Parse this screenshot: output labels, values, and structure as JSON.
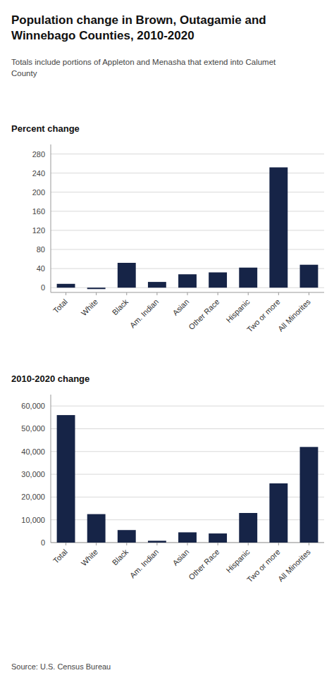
{
  "title": "Population change in Brown, Outagamie and\nWinnebago Counties, 2010-2020",
  "subtitle": "Totals include portions of Appleton and Menasha that extend into Calumet\nCounty",
  "source": "Source: U.S. Census Bureau",
  "chart_data": [
    {
      "type": "bar",
      "title": "Percent change",
      "categories": [
        "Total",
        "White",
        "Black",
        "Am. Indian",
        "Asian",
        "Other Race",
        "Hispanic",
        "Two or more",
        "All Minorites"
      ],
      "values": [
        8,
        -3,
        52,
        12,
        28,
        32,
        42,
        252,
        48
      ],
      "color": "#162447",
      "ylim": [
        -10,
        300
      ],
      "yticks": [
        0,
        40,
        80,
        120,
        160,
        200,
        240,
        280
      ],
      "grid": true
    },
    {
      "type": "bar",
      "title": "2010-2020 change",
      "categories": [
        "Total",
        "White",
        "Black",
        "Am. Indian",
        "Asian",
        "Other Race",
        "Hispanic",
        "Two or more",
        "All Minorites"
      ],
      "values": [
        56000,
        12500,
        5500,
        800,
        4500,
        4000,
        13000,
        26000,
        42000
      ],
      "color": "#162447",
      "ylim": [
        0,
        65000
      ],
      "yticks": [
        0,
        {
          "value": 10000,
          "label": "10,000"
        },
        {
          "value": 20000,
          "label": "20,000"
        },
        {
          "value": 30000,
          "label": "30,000"
        },
        {
          "value": 40000,
          "label": "40,000"
        },
        {
          "value": 50000,
          "label": "50,000"
        },
        {
          "value": 60000,
          "label": "60,000"
        }
      ],
      "grid": true
    }
  ]
}
